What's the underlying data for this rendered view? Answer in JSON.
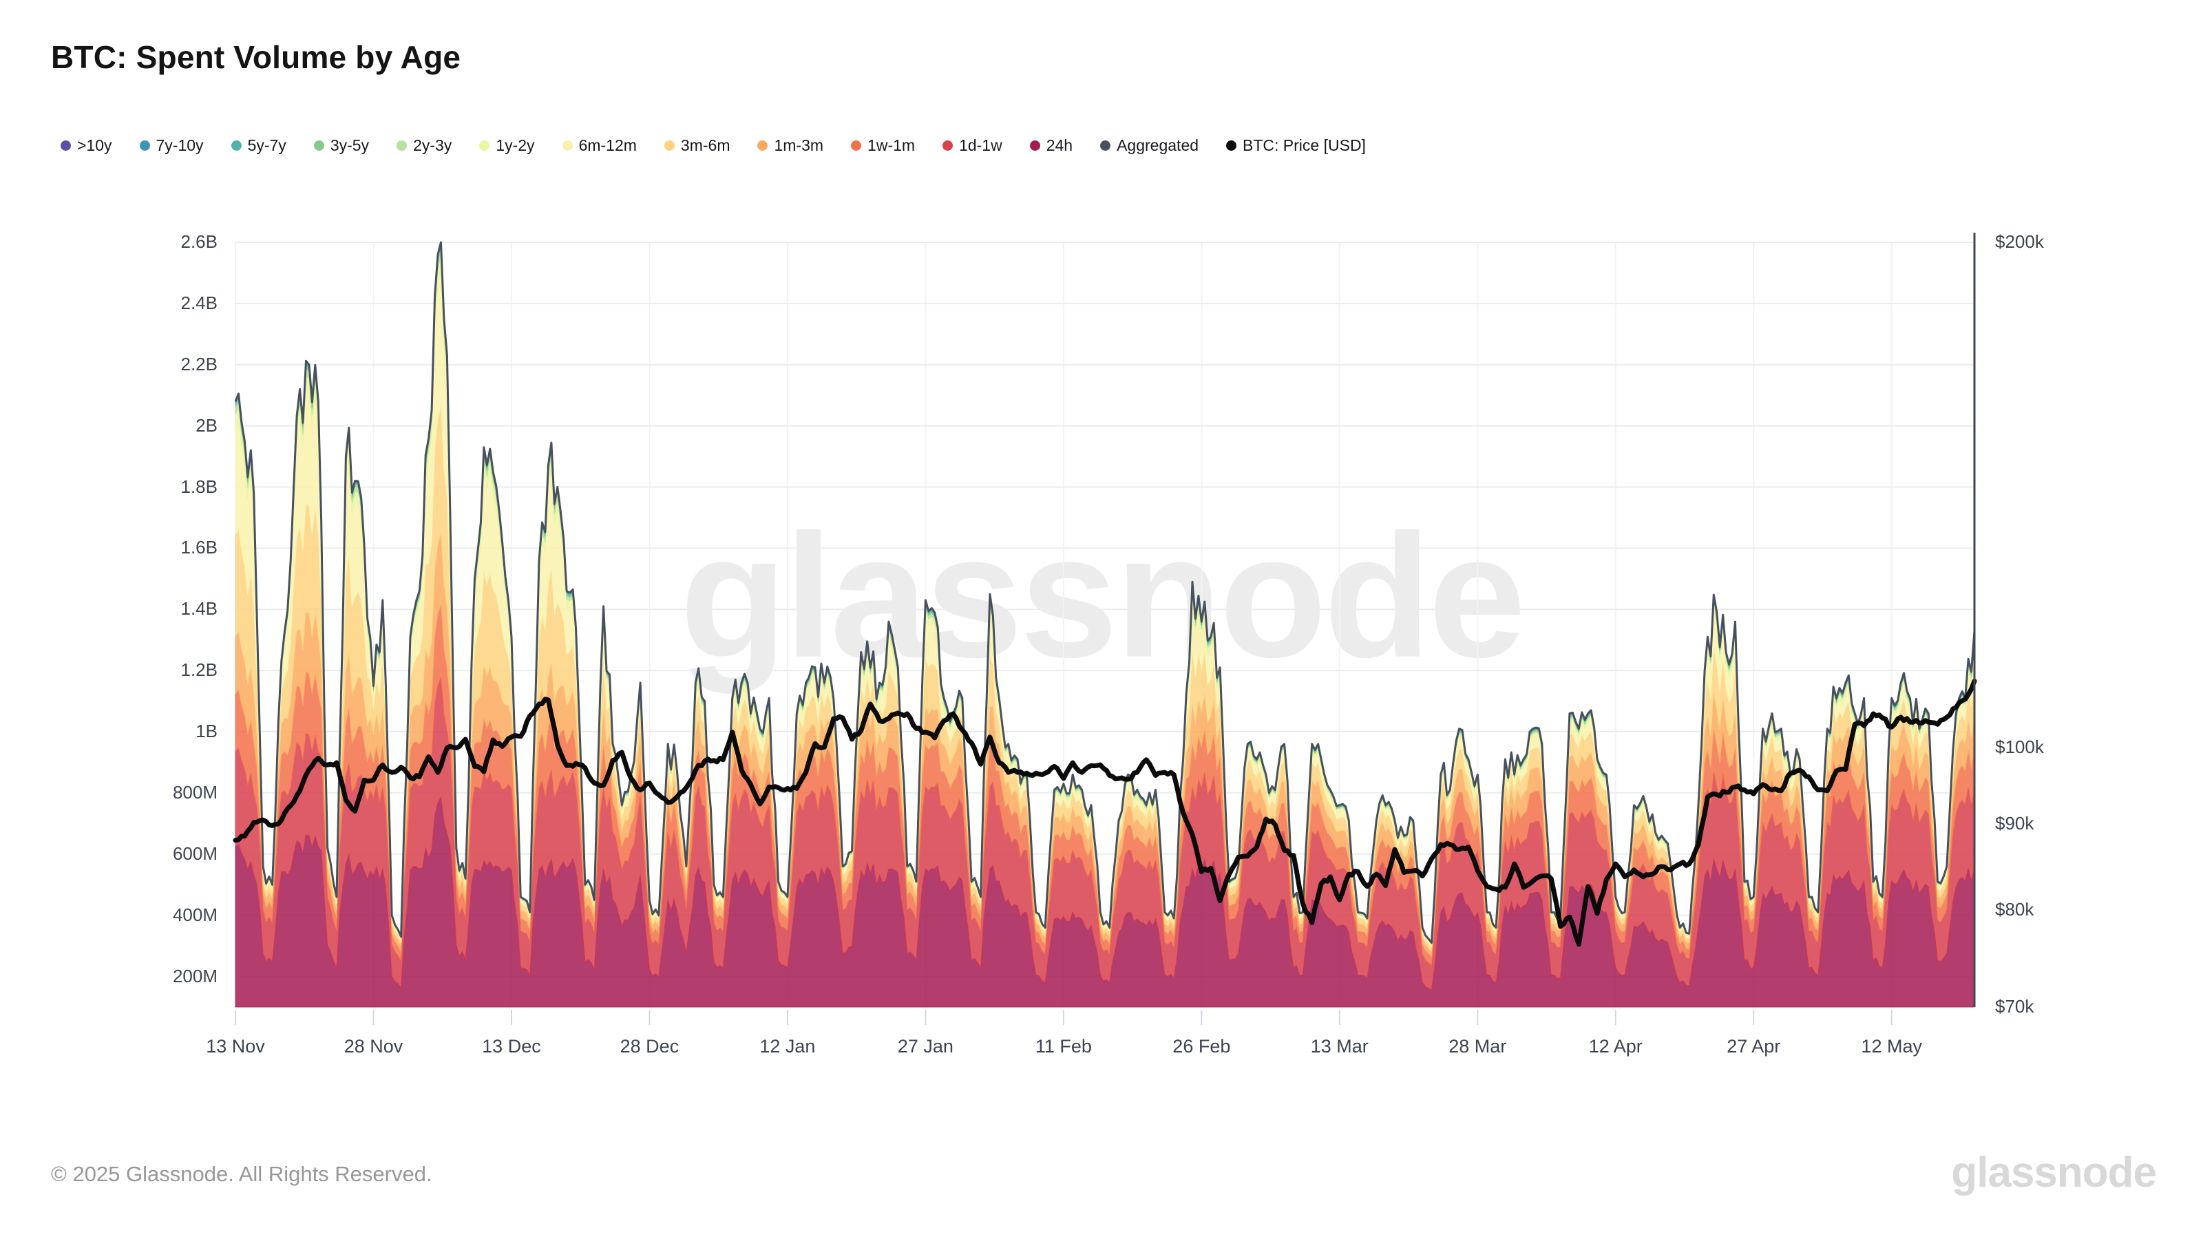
{
  "header": {
    "title": "BTC: Spent Volume by Age"
  },
  "watermark_text": "glassnode",
  "footer": {
    "copyright": "© 2025 Glassnode. All Rights Reserved.",
    "logo_text": "glassnode"
  },
  "legend": {
    "items": [
      {
        "label": ">10y",
        "color": "#5e4fa2"
      },
      {
        "label": "7y-10y",
        "color": "#3d94b8"
      },
      {
        "label": "5y-7y",
        "color": "#4fb3ab"
      },
      {
        "label": "3y-5y",
        "color": "#86c98b"
      },
      {
        "label": "2y-3y",
        "color": "#b6e2a1"
      },
      {
        "label": "1y-2y",
        "color": "#e9f6a2"
      },
      {
        "label": "6m-12m",
        "color": "#f9f2ad"
      },
      {
        "label": "3m-6m",
        "color": "#fdd27f"
      },
      {
        "label": "1m-3m",
        "color": "#fca95e"
      },
      {
        "label": "1w-1m",
        "color": "#f2714b"
      },
      {
        "label": "1d-1w",
        "color": "#d8404e"
      },
      {
        "label": "24h",
        "color": "#a61b53"
      },
      {
        "label": "Aggregated",
        "color": "#47505e"
      },
      {
        "label": "BTC: Price [USD]",
        "color": "#0b0b0b"
      }
    ]
  },
  "chart_data": {
    "type": "area",
    "stacked": true,
    "title": "BTC: Spent Volume by Age",
    "start_date": "2024-11-13",
    "x_tick_labels": [
      "13 Nov",
      "28 Nov",
      "13 Dec",
      "28 Dec",
      "12 Jan",
      "27 Jan",
      "11 Feb",
      "26 Feb",
      "13 Mar",
      "28 Mar",
      "12 Apr",
      "27 Apr",
      "12 May"
    ],
    "x_tick_days": [
      0,
      15,
      30,
      45,
      60,
      75,
      90,
      105,
      120,
      135,
      150,
      165,
      180
    ],
    "y_left": {
      "unit": "USD volume",
      "min": 100,
      "max": 2600,
      "tick_values": [
        2600,
        2400,
        2200,
        2000,
        1800,
        1600,
        1400,
        1200,
        1000,
        800,
        600,
        400,
        200
      ],
      "tick_labels": [
        "2.6B",
        "2.4B",
        "2.2B",
        "2B",
        "1.8B",
        "1.6B",
        "1.4B",
        "1.2B",
        "1B",
        "800M",
        "600M",
        "400M",
        "200M"
      ]
    },
    "y_right": {
      "unit": "USD price",
      "scale": "log",
      "tick_values": [
        200,
        100,
        90,
        80,
        70
      ],
      "tick_labels": [
        "$200k",
        "$100k",
        "$90k",
        "$80k",
        "$70k"
      ]
    },
    "grid": {
      "horizontal": true,
      "vertical": true
    },
    "band_order_bottom_to_top": [
      "24h",
      "1d-1w",
      "1w-1m",
      "1m-3m",
      "3m-6m",
      "6m-12m",
      "1y-2y",
      "2y-3y",
      "3y-5y",
      "5y-7y",
      "7y-10y",
      ">10y"
    ],
    "band_fraction_profiles": {
      "trough": [
        0.5,
        0.26,
        0.09,
        0.06,
        0.045,
        0.025,
        0.008,
        0.004,
        0.003,
        0.002,
        0.002,
        0.001
      ],
      "normal": [
        0.46,
        0.22,
        0.1,
        0.08,
        0.07,
        0.04,
        0.013,
        0.006,
        0.004,
        0.003,
        0.002,
        0.002
      ],
      "peak": [
        0.3,
        0.15,
        0.09,
        0.09,
        0.16,
        0.17,
        0.02,
        0.01,
        0.005,
        0.003,
        0.001,
        0.001
      ]
    },
    "aggregated_color": "#47505e",
    "price_color": "#0b0b0b",
    "aggregated_total_musd": [
      2080,
      1950,
      1780,
      560,
      500,
      1230,
      1560,
      2120,
      2200,
      2080,
      620,
      460,
      1900,
      1820,
      1610,
      1150,
      1430,
      400,
      330,
      1310,
      1460,
      1960,
      2560,
      2230,
      620,
      520,
      1500,
      1930,
      1850,
      1620,
      1310,
      460,
      410,
      1560,
      1870,
      1800,
      1460,
      1340,
      500,
      450,
      1410,
      960,
      760,
      860,
      1160,
      450,
      400,
      960,
      870,
      560,
      1160,
      1100,
      500,
      460,
      1110,
      1160,
      1060,
      1010,
      1110,
      510,
      460,
      1060,
      1160,
      1210,
      1160,
      1110,
      560,
      610,
      1260,
      1210,
      1160,
      1360,
      1210,
      560,
      510,
      1430,
      1390,
      1110,
      1060,
      1110,
      510,
      460,
      1450,
      1110,
      960,
      910,
      860,
      410,
      360,
      810,
      830,
      860,
      810,
      760,
      410,
      360,
      710,
      860,
      810,
      760,
      810,
      410,
      390,
      910,
      1490,
      1360,
      1310,
      1210,
      510,
      560,
      960,
      910,
      860,
      810,
      960,
      460,
      410,
      960,
      910,
      810,
      760,
      710,
      410,
      390,
      710,
      760,
      710,
      660,
      710,
      360,
      310,
      860,
      810,
      1010,
      910,
      860,
      410,
      360,
      910,
      860,
      910,
      1010,
      960,
      410,
      390,
      1060,
      1010,
      1060,
      910,
      860,
      460,
      410,
      760,
      790,
      730,
      660,
      560,
      360,
      340,
      760,
      1310,
      1390,
      1260,
      1360,
      510,
      460,
      1010,
      1060,
      1010,
      860,
      910,
      460,
      410,
      1010,
      1110,
      1160,
      1060,
      1110,
      510,
      460,
      1110,
      1160,
      1110,
      1010,
      1060,
      510,
      560,
      1060,
      1110,
      1330
    ],
    "btc_price_kusd": [
      88.0,
      88.5,
      90.2,
      90.5,
      89.8,
      90.5,
      92.3,
      94.2,
      97.0,
      98.5,
      97.6,
      97.9,
      93.0,
      91.6,
      95.6,
      95.6,
      97.6,
      96.6,
      97.3,
      95.9,
      96.0,
      98.7,
      96.6,
      99.9,
      99.9,
      101.1,
      97.4,
      96.7,
      101.0,
      100.1,
      101.4,
      101.5,
      104.4,
      106.1,
      106.7,
      100.3,
      97.5,
      97.8,
      97.2,
      95.2,
      94.9,
      98.2,
      99.3,
      95.8,
      94.3,
      95.2,
      93.7,
      92.7,
      93.4,
      94.6,
      96.9,
      98.1,
      98.2,
      98.3,
      102.1,
      96.9,
      95.0,
      92.5,
      94.7,
      94.6,
      94.5,
      94.5,
      96.6,
      100.5,
      100.0,
      104.0,
      104.1,
      101.1,
      102.3,
      106.1,
      103.7,
      104.0,
      104.8,
      104.7,
      102.6,
      102.1,
      101.3,
      103.7,
      104.7,
      102.4,
      100.6,
      97.7,
      101.4,
      97.9,
      96.6,
      96.6,
      96.5,
      96.5,
      96.5,
      97.4,
      95.8,
      97.9,
      96.6,
      97.5,
      97.6,
      96.2,
      95.8,
      95.7,
      96.6,
      98.3,
      96.2,
      96.6,
      96.3,
      91.4,
      88.7,
      84.3,
      84.7,
      81.0,
      84.0,
      86.0,
      86.1,
      87.2,
      90.6,
      89.9,
      86.8,
      86.2,
      80.7,
      78.6,
      82.9,
      83.7,
      81.1,
      84.0,
      84.3,
      82.6,
      84.0,
      82.7,
      86.9,
      84.2,
      84.4,
      83.8,
      85.8,
      87.5,
      87.5,
      86.9,
      87.2,
      84.4,
      82.6,
      82.3,
      82.5,
      85.2,
      82.5,
      83.2,
      83.8,
      83.5,
      78.2,
      79.2,
      76.3,
      82.6,
      79.6,
      83.4,
      85.2,
      83.7,
      84.5,
      83.7,
      84.0,
      84.9,
      84.5,
      85.2,
      85.2,
      87.5,
      93.4,
      93.7,
      94.0,
      94.7,
      94.3,
      93.8,
      95.0,
      94.3,
      94.2,
      96.5,
      96.9,
      96.0,
      94.3,
      94.2,
      96.8,
      97.0,
      103.2,
      103.0,
      104.7,
      104.1,
      102.8,
      104.2,
      103.5,
      103.4,
      103.5,
      103.2,
      104.2,
      105.6,
      106.8,
      109.5
    ]
  }
}
